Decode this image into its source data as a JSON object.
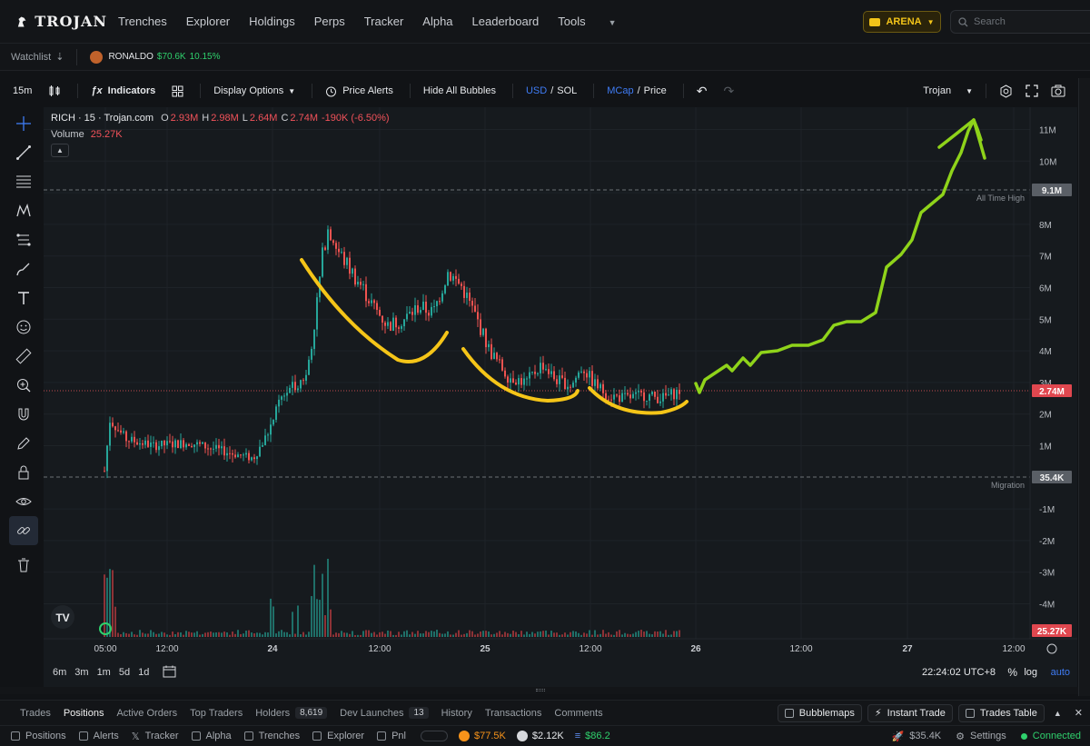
{
  "brand": {
    "name": "TROJAN"
  },
  "nav": {
    "items": [
      "Trenches",
      "Explorer",
      "Holdings",
      "Perps",
      "Tracker",
      "Alpha",
      "Leaderboard",
      "Tools"
    ],
    "arena_label": "ARENA",
    "search_placeholder": "Search"
  },
  "watchlist": {
    "label": "Watchlist",
    "token": {
      "name": "RONALDO",
      "mcap": "$70.6K",
      "change": "10.15%"
    }
  },
  "toolbar": {
    "interval": "15m",
    "indicators": "Indicators",
    "display_options": "Display Options",
    "price_alerts": "Price Alerts",
    "hide_bubbles": "Hide All Bubbles",
    "usd": "USD",
    "sol": "SOL",
    "mcap": "MCap",
    "price": "Price",
    "slash": "/",
    "source": "Trojan"
  },
  "legend": {
    "symbol": "RICH · 15 · Trojan.com",
    "o_label": "O",
    "o": "2.93M",
    "h_label": "H",
    "h": "2.98M",
    "l_label": "L",
    "l": "2.64M",
    "c_label": "C",
    "c": "2.74M",
    "chg": "-190K (-6.50%)",
    "volume_label": "Volume",
    "volume": "25.27K"
  },
  "chart_data": {
    "type": "candlestick",
    "title": "RICH · 15 · Trojan.com",
    "y_axis_ticks": [
      "11M",
      "10M",
      "9M",
      "8M",
      "7M",
      "6M",
      "5M",
      "4M",
      "3M",
      "2M",
      "1M",
      "-1M",
      "-2M",
      "-3M",
      "-4M"
    ],
    "x_axis_ticks": [
      "05:00",
      "12:00",
      "24",
      "12:00",
      "25",
      "12:00",
      "26",
      "12:00",
      "27",
      "12:00"
    ],
    "ylim": [
      -4.5,
      11.5
    ],
    "series": [
      {
        "name": "Market cap",
        "x": [
          "05:00",
          "12:00",
          "24",
          "12:00",
          "25",
          "12:00",
          "26"
        ],
        "values": [
          0.9,
          0.8,
          2.2,
          5.5,
          3.5,
          2.9,
          2.74
        ]
      }
    ],
    "ath": {
      "label": "All Time High",
      "value_label": "9.1M",
      "value": 9.1
    },
    "migration": {
      "label": "Migration",
      "value_label": "35.4K",
      "value": 0.0354
    },
    "current": {
      "value_label": "2.74M",
      "value": 2.74
    },
    "volume_current": "25.27K",
    "overlay_annotations": [
      {
        "type": "hand-drawn-curve",
        "color": "#f5c518",
        "x_range": [
          "24",
          "12:00"
        ]
      },
      {
        "type": "hand-drawn-curve",
        "color": "#f5c518",
        "x_range": [
          "25",
          "12:00"
        ]
      },
      {
        "type": "hand-drawn-curve",
        "color": "#f5c518",
        "x_range": [
          "12:00",
          "26"
        ]
      },
      {
        "type": "hand-drawn-arrow",
        "color": "#8fd31a",
        "x_range": [
          "26",
          "27"
        ],
        "direction": "up"
      }
    ]
  },
  "range": {
    "buttons": [
      "6m",
      "3m",
      "1m",
      "5d",
      "1d"
    ],
    "time": "22:24:02 UTC+8",
    "pct": "%",
    "log": "log",
    "auto": "auto"
  },
  "tabs": {
    "items": [
      "Trades",
      "Positions",
      "Active Orders",
      "Top Traders",
      "Holders",
      "Dev Launches",
      "History",
      "Transactions",
      "Comments"
    ],
    "holders_count": "8,619",
    "dev_count": "13",
    "bubblemaps": "Bubblemaps",
    "instant_trade": "Instant Trade",
    "trades_table": "Trades Table"
  },
  "footer": {
    "items": [
      "Positions",
      "Alerts",
      "Tracker",
      "Alpha",
      "Trenches",
      "Explorer",
      "Pnl"
    ],
    "btc": "$77.5K",
    "eth": "$2.12K",
    "sol": "$86.2",
    "sol_mcap": "$35.4K",
    "settings": "Settings",
    "connected": "Connected"
  },
  "colors": {
    "up": "#26a69a",
    "down": "#ef5350",
    "accent": "#3f7cf5",
    "arena": "#f3c419",
    "annotation_yellow": "#f5c518",
    "annotation_green": "#8fd31a"
  }
}
